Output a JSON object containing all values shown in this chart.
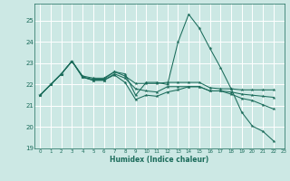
{
  "xlabel": "Humidex (Indice chaleur)",
  "bg_color": "#cce8e4",
  "grid_color": "#ffffff",
  "line_color": "#1a6b5a",
  "xlim": [
    -0.5,
    23
  ],
  "ylim": [
    19,
    25.8
  ],
  "yticks": [
    19,
    20,
    21,
    22,
    23,
    24,
    25
  ],
  "xticks": [
    0,
    1,
    2,
    3,
    4,
    5,
    6,
    7,
    8,
    9,
    10,
    11,
    12,
    13,
    14,
    15,
    16,
    17,
    18,
    19,
    20,
    21,
    22,
    23
  ],
  "series": [
    [
      21.5,
      22.0,
      22.5,
      23.1,
      22.4,
      22.3,
      22.3,
      22.6,
      22.5,
      21.5,
      22.1,
      22.1,
      22.0,
      24.0,
      25.3,
      24.65,
      23.7,
      22.8,
      21.8,
      20.7,
      20.05,
      19.8,
      19.35
    ],
    [
      21.5,
      22.0,
      22.5,
      23.1,
      22.35,
      22.25,
      22.25,
      22.6,
      22.4,
      22.05,
      22.05,
      22.05,
      22.1,
      22.1,
      22.1,
      22.1,
      21.85,
      21.8,
      21.8,
      21.75,
      21.75,
      21.75,
      21.75
    ],
    [
      21.5,
      22.0,
      22.5,
      23.1,
      22.35,
      22.2,
      22.2,
      22.5,
      22.3,
      21.8,
      21.7,
      21.65,
      21.9,
      21.9,
      21.9,
      21.9,
      21.7,
      21.7,
      21.65,
      21.55,
      21.5,
      21.45,
      21.4
    ],
    [
      21.5,
      22.0,
      22.5,
      23.1,
      22.35,
      22.2,
      22.2,
      22.45,
      22.1,
      21.3,
      21.5,
      21.45,
      21.65,
      21.75,
      21.9,
      21.9,
      21.7,
      21.7,
      21.55,
      21.35,
      21.25,
      21.05,
      20.85
    ]
  ]
}
